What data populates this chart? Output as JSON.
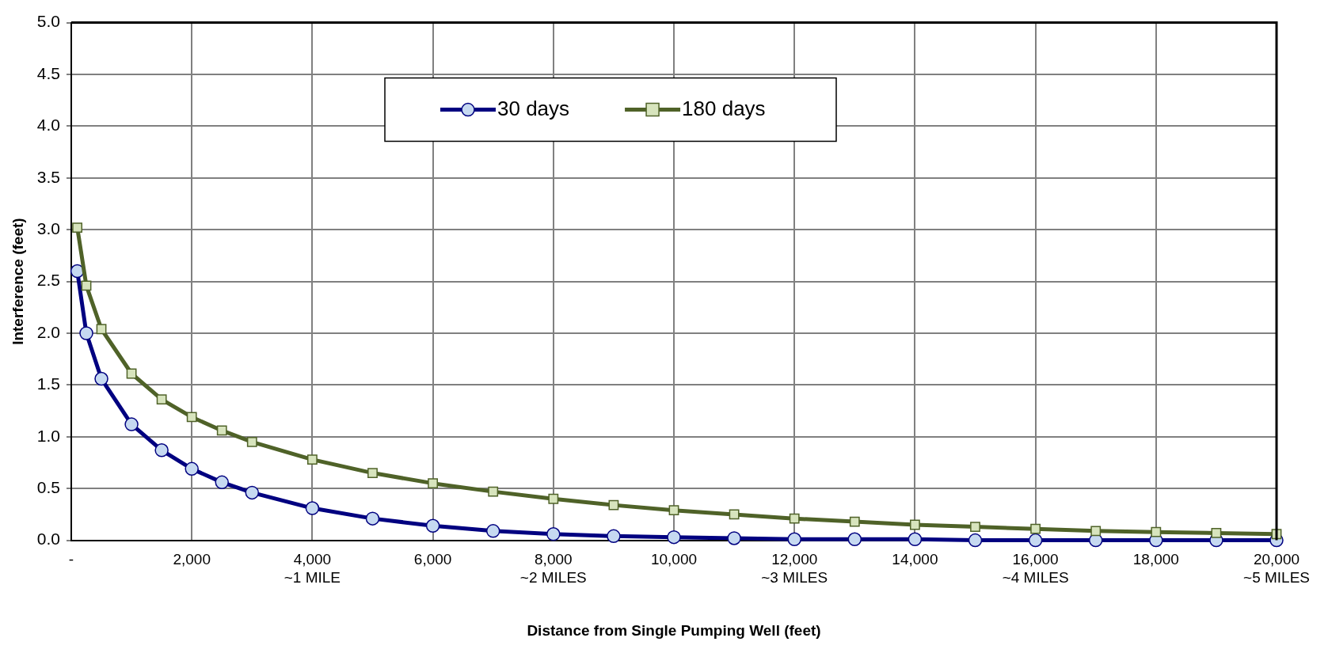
{
  "chart_data": {
    "type": "line",
    "xlabel": "Distance from Single Pumping Well (feet)",
    "ylabel": "Interference (feet)",
    "xlim": [
      0,
      20000
    ],
    "xticks": [
      {
        "value": 0,
        "label": "-"
      },
      {
        "value": 2000,
        "label": "2,000"
      },
      {
        "value": 4000,
        "label": "4,000\n~1 MILE"
      },
      {
        "value": 6000,
        "label": "6,000"
      },
      {
        "value": 8000,
        "label": "8,000\n~2 MILES"
      },
      {
        "value": 10000,
        "label": "10,000"
      },
      {
        "value": 12000,
        "label": "12,000\n~3 MILES"
      },
      {
        "value": 14000,
        "label": "14,000"
      },
      {
        "value": 16000,
        "label": "16,000\n~4 MILES"
      },
      {
        "value": 18000,
        "label": "18,000"
      },
      {
        "value": 20000,
        "label": "20,000\n~5 MILES"
      }
    ],
    "ylim": [
      0,
      5
    ],
    "yticks": [
      {
        "value": 0,
        "label": "0.0"
      },
      {
        "value": 0.5,
        "label": "0.5"
      },
      {
        "value": 1,
        "label": "1.0"
      },
      {
        "value": 1.5,
        "label": "1.5"
      },
      {
        "value": 2,
        "label": "2.0"
      },
      {
        "value": 2.5,
        "label": "2.5"
      },
      {
        "value": 3,
        "label": "3.0"
      },
      {
        "value": 3.5,
        "label": "3.5"
      },
      {
        "value": 4,
        "label": "4.0"
      },
      {
        "value": 4.5,
        "label": "4.5"
      },
      {
        "value": 5,
        "label": "5.0"
      }
    ],
    "grid": true,
    "legend": "top",
    "line_style": "solid",
    "series": [
      {
        "name": "30 days",
        "color": "#000080",
        "marker": "circle",
        "x": [
          100,
          250,
          500,
          1000,
          1500,
          2000,
          2500,
          3000,
          4000,
          5000,
          6000,
          7000,
          8000,
          9000,
          10000,
          11000,
          12000,
          13000,
          14000,
          15000,
          16000,
          17000,
          18000,
          19000,
          20000
        ],
        "values": [
          2.6,
          2.0,
          1.56,
          1.12,
          0.87,
          0.69,
          0.56,
          0.46,
          0.31,
          0.21,
          0.14,
          0.09,
          0.06,
          0.04,
          0.03,
          0.02,
          0.01,
          0.01,
          0.01,
          0.0,
          0.0,
          0.0,
          0.0,
          0.0,
          0.0
        ]
      },
      {
        "name": "180 days",
        "color": "#4f6228",
        "marker": "square",
        "x": [
          100,
          250,
          500,
          1000,
          1500,
          2000,
          2500,
          3000,
          4000,
          5000,
          6000,
          7000,
          8000,
          9000,
          10000,
          11000,
          12000,
          13000,
          14000,
          15000,
          16000,
          17000,
          18000,
          19000,
          20000
        ],
        "values": [
          3.02,
          2.46,
          2.04,
          1.61,
          1.36,
          1.19,
          1.06,
          0.95,
          0.78,
          0.65,
          0.55,
          0.47,
          0.4,
          0.34,
          0.29,
          0.25,
          0.21,
          0.18,
          0.15,
          0.13,
          0.11,
          0.09,
          0.08,
          0.07,
          0.06
        ]
      }
    ]
  }
}
